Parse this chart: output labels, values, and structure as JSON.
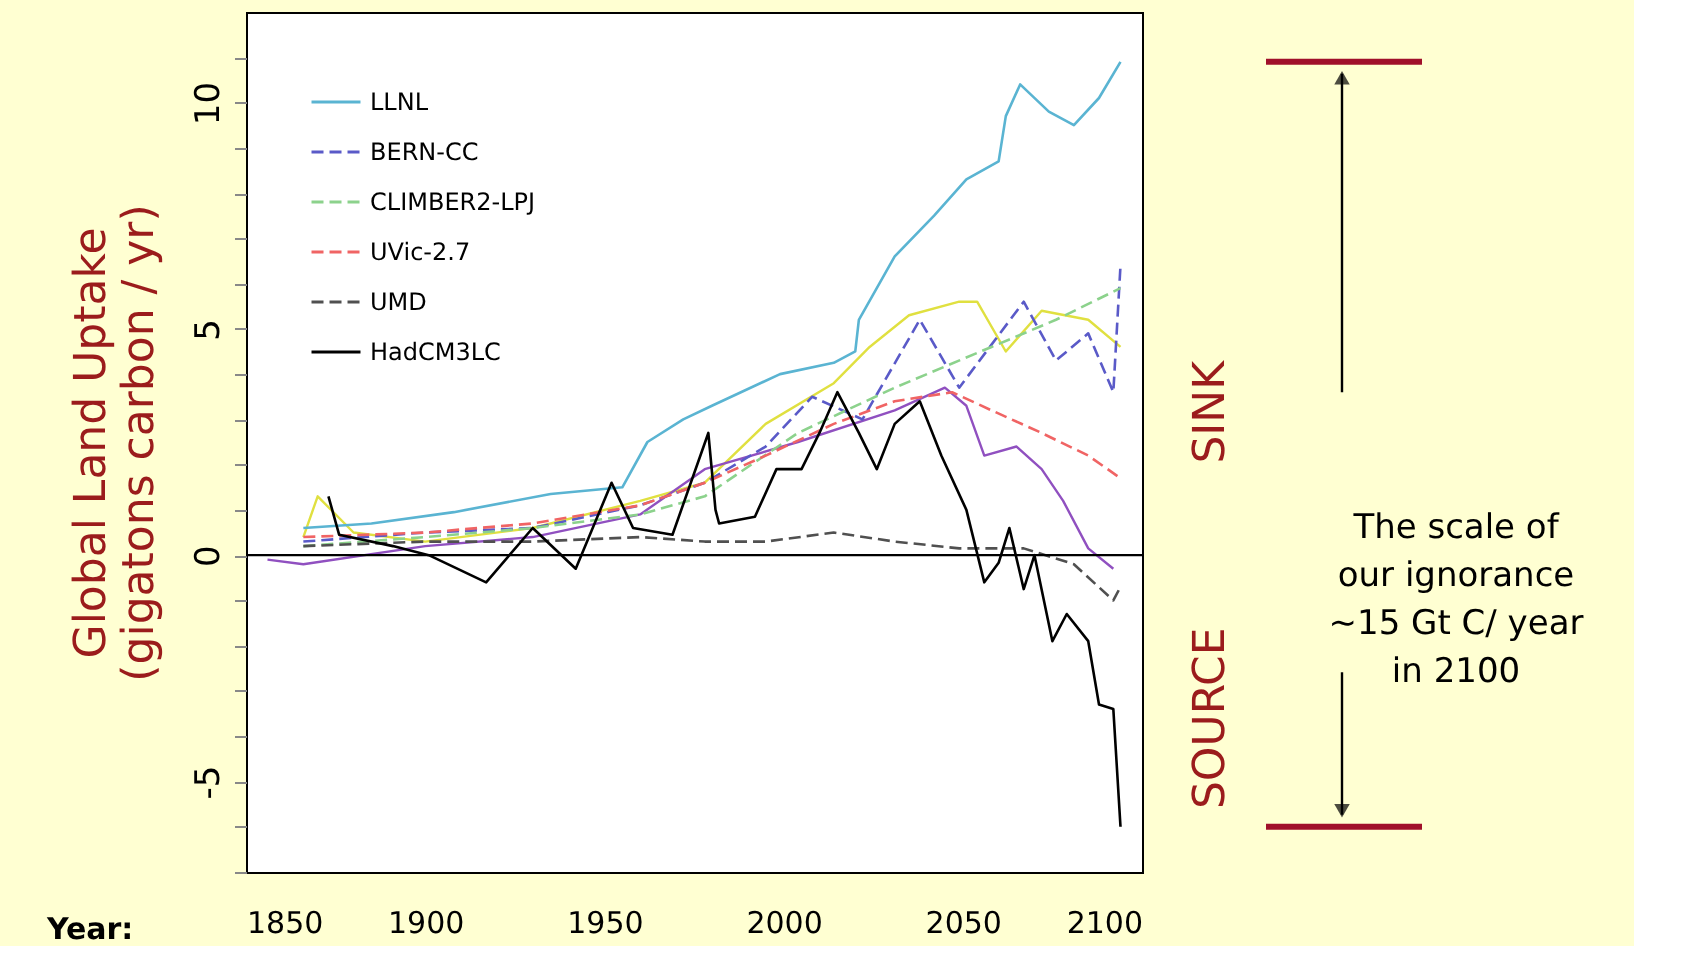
{
  "chart_data": {
    "type": "line",
    "xlabel": "Year:",
    "ylabel": "Global Land Uptake\n(gigatons carbon / yr)",
    "xlim": [
      1850,
      2100
    ],
    "xticks": [
      1850,
      1900,
      1950,
      2000,
      2050,
      2100
    ],
    "ylim": [
      -7,
      12
    ],
    "yticks": [
      {
        "value": -7,
        "label": null
      },
      {
        "value": -6,
        "label": null
      },
      -5,
      {
        "value": -4,
        "label": null
      },
      {
        "value": -3,
        "label": null
      },
      {
        "value": -2,
        "label": null
      },
      {
        "value": -1,
        "label": null
      },
      0,
      {
        "value": 1,
        "label": null
      },
      {
        "value": 2,
        "label": null
      },
      {
        "value": 3,
        "label": null
      },
      {
        "value": 4,
        "label": null
      },
      5,
      {
        "value": 6,
        "label": null
      },
      {
        "value": 7,
        "label": null
      },
      {
        "value": 8,
        "label": null
      },
      {
        "value": 9,
        "label": null
      },
      10,
      {
        "value": 11,
        "label": null
      }
    ],
    "grid": false,
    "legend": "top left",
    "ref_lines": [
      {
        "axis": "y",
        "value": 0,
        "color": "#000000"
      }
    ],
    "annotations": [
      "SINK",
      "SOURCE",
      "The scale of\nour ignorance\n~15 Gt C/ year\nin 2100"
    ],
    "series": [
      {
        "name": "LLNL",
        "color": "#5ab4d2",
        "line_style": "solid",
        "x": [
          1866,
          1885,
          1908,
          1935,
          1955,
          1962,
          1972,
          1980,
          1999,
          2014,
          2020,
          2021,
          2031,
          2042,
          2051,
          2060,
          2062,
          2066,
          2074,
          2081,
          2088,
          2094
        ],
        "values": [
          0.6,
          0.7,
          0.95,
          1.35,
          1.5,
          2.5,
          3.0,
          3.3,
          4.0,
          4.25,
          4.5,
          5.2,
          6.6,
          7.5,
          8.3,
          8.7,
          9.7,
          10.4,
          9.8,
          9.5,
          10.1,
          10.9
        ]
      },
      {
        "name": "BERN-CC",
        "color": "#5a5ac8",
        "line_style": "dashed",
        "x": [
          1866,
          1900,
          1930,
          1960,
          1978,
          1995,
          2008,
          2022,
          2038,
          2049,
          2067,
          2076,
          2085,
          2092,
          2094
        ],
        "values": [
          0.3,
          0.5,
          0.6,
          1.1,
          1.6,
          2.4,
          3.5,
          3.0,
          5.2,
          3.7,
          5.6,
          4.3,
          4.9,
          3.6,
          6.4
        ]
      },
      {
        "name": "CLIMBER2-LPJ",
        "color": "#8cd28c",
        "line_style": "dashed",
        "x": [
          1866,
          1900,
          1930,
          1960,
          1978,
          2004,
          2031,
          2058,
          2076,
          2094
        ],
        "values": [
          0.2,
          0.4,
          0.6,
          0.9,
          1.3,
          2.7,
          3.7,
          4.6,
          5.2,
          5.9
        ]
      },
      {
        "name": "UVic-2.7",
        "color": "#f06464",
        "line_style": "dashed",
        "x": [
          1866,
          1900,
          1930,
          1960,
          1978,
          1995,
          2014,
          2031,
          2047,
          2058,
          2072,
          2085,
          2094
        ],
        "values": [
          0.4,
          0.5,
          0.7,
          1.1,
          1.6,
          2.2,
          2.9,
          3.4,
          3.6,
          3.2,
          2.7,
          2.2,
          1.7
        ]
      },
      {
        "name": "UMD",
        "color": "#505050",
        "line_style": "dashed",
        "x": [
          1866,
          1900,
          1930,
          1960,
          1978,
          1995,
          2014,
          2031,
          2049,
          2067,
          2081,
          2092,
          2094
        ],
        "values": [
          0.2,
          0.3,
          0.3,
          0.4,
          0.3,
          0.3,
          0.5,
          0.3,
          0.15,
          0.15,
          -0.2,
          -1.0,
          -0.7
        ]
      },
      {
        "name": "HadCM3LC",
        "color": "#000000",
        "line_style": "solid",
        "x": [
          1873,
          1876,
          1891,
          1901,
          1917,
          1930,
          1942,
          1952,
          1958,
          1969,
          1979,
          1981,
          1982,
          1992,
          1998,
          2005,
          2010,
          2015,
          2021,
          2026,
          2031,
          2038,
          2044,
          2051,
          2056,
          2060,
          2063,
          2067,
          2070,
          2075,
          2079,
          2085,
          2088,
          2092,
          2094
        ],
        "values": [
          1.3,
          0.45,
          0.2,
          0.0,
          -0.6,
          0.6,
          -0.3,
          1.6,
          0.6,
          0.45,
          2.7,
          1.0,
          0.7,
          0.85,
          1.9,
          1.9,
          2.7,
          3.6,
          2.7,
          1.9,
          2.9,
          3.4,
          2.2,
          1.0,
          -0.6,
          -0.17,
          0.6,
          -0.75,
          0.0,
          -1.9,
          -1.3,
          -1.9,
          -3.3,
          -3.4,
          -6.0
        ]
      },
      {
        "color": "#e0e040",
        "line_style": "solid",
        "x": [
          1866,
          1870,
          1880,
          1900,
          1930,
          1960,
          1978,
          1995,
          2014,
          2024,
          2035,
          2049,
          2054,
          2062,
          2072,
          2085,
          2094
        ],
        "values": [
          0.4,
          1.3,
          0.5,
          0.3,
          0.6,
          1.2,
          1.6,
          2.9,
          3.8,
          4.6,
          5.3,
          5.6,
          5.6,
          4.5,
          5.4,
          5.2,
          4.6
        ]
      },
      {
        "color": "#9050c0",
        "line_style": "solid",
        "x": [
          1856,
          1866,
          1900,
          1930,
          1960,
          1978,
          2004,
          2031,
          2045,
          2051,
          2056,
          2065,
          2072,
          2078,
          2085,
          2092
        ],
        "values": [
          -0.1,
          -0.2,
          0.2,
          0.4,
          0.9,
          1.9,
          2.5,
          3.2,
          3.7,
          3.3,
          2.2,
          2.4,
          1.9,
          1.2,
          0.15,
          -0.3
        ]
      }
    ]
  }
}
